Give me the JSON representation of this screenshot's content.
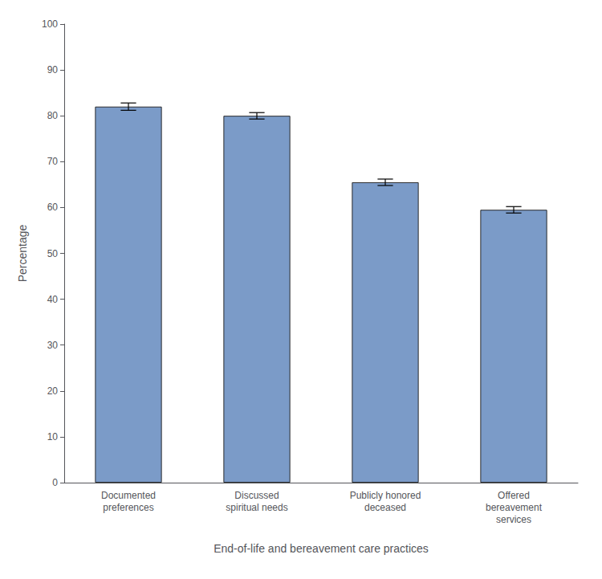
{
  "chart_data": {
    "type": "bar",
    "categories": [
      "Documented\npreferences",
      "Discussed\nspiritual needs",
      "Publicly honored\ndeceased",
      "Offered\nbereavement\nservices"
    ],
    "values": [
      82,
      80,
      65.5,
      59.5
    ],
    "errors": [
      0.8,
      0.7,
      0.7,
      0.7
    ],
    "color": "#7B9BC8",
    "ylim": [
      0,
      100
    ],
    "yticks": [
      0,
      10,
      20,
      30,
      40,
      50,
      60,
      70,
      80,
      90,
      100
    ],
    "ylabel": "Percentage",
    "xlabel": "End-of-life and bereavement care practices",
    "grid": false
  }
}
